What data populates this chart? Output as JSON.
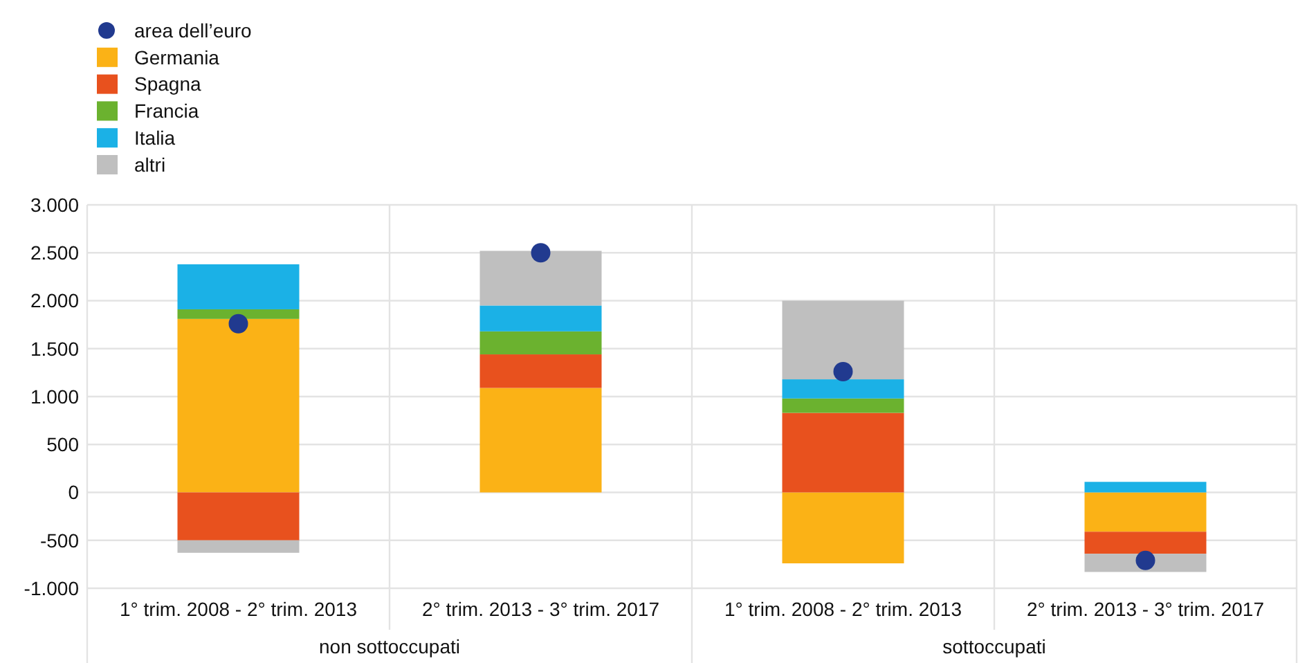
{
  "chart_data": {
    "type": "bar",
    "stacked": true,
    "categories": [
      "1° trim. 2008 - 2° trim. 2013",
      "2° trim. 2013 - 3° trim. 2017",
      "1° trim. 2008 - 2° trim. 2013",
      "2° trim. 2013 - 3° trim. 2017"
    ],
    "series": [
      {
        "name": "area dell’euro",
        "type": "scatter",
        "marker": "circle",
        "color": "#213a8f",
        "values": [
          1760,
          2500,
          1260,
          -710
        ]
      },
      {
        "name": "Germania",
        "color": "#fbb216",
        "values": [
          1810,
          1090,
          -740,
          -410
        ]
      },
      {
        "name": "Spagna",
        "color": "#e8511e",
        "values": [
          -500,
          350,
          830,
          -230
        ]
      },
      {
        "name": "Francia",
        "color": "#6bb22f",
        "values": [
          100,
          240,
          150,
          0
        ]
      },
      {
        "name": "Italia",
        "color": "#1bb1e6",
        "values": [
          470,
          270,
          200,
          110
        ]
      },
      {
        "name": "altri",
        "color": "#bfbfbf",
        "values": [
          -130,
          570,
          820,
          -190
        ]
      }
    ],
    "ylim": [
      -1000,
      3000
    ],
    "yticks": [
      {
        "value": -1000,
        "label": "-1.000"
      },
      {
        "value": -500,
        "label": "-500"
      },
      0,
      500,
      {
        "value": 1000,
        "label": "1.000"
      },
      {
        "value": 1500,
        "label": "1.500"
      },
      {
        "value": 2000,
        "label": "2.000"
      },
      {
        "value": 2500,
        "label": "2.500"
      },
      {
        "value": 3000,
        "label": "3.000"
      }
    ],
    "annotations": [
      "non sottoccupati",
      "sottoccupati"
    ],
    "grid": true,
    "legend": "top left"
  }
}
